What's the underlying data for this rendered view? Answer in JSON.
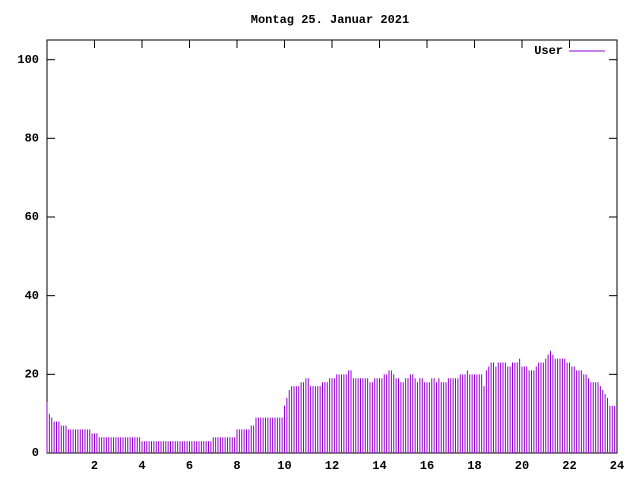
{
  "chart_data": {
    "type": "impulses",
    "title": "Montag 25. Januar 2021",
    "x": [
      0,
      0.1,
      0.2,
      0.3,
      0.4,
      0.5,
      0.6,
      0.7,
      0.8,
      0.9,
      1,
      1.1,
      1.2,
      1.3,
      1.4,
      1.5,
      1.6,
      1.7,
      1.8,
      1.9,
      2,
      2.1,
      2.2,
      2.3,
      2.4,
      2.5,
      2.6,
      2.7,
      2.8,
      2.9,
      3,
      3.1,
      3.2,
      3.3,
      3.4,
      3.5,
      3.6,
      3.7,
      3.8,
      3.9,
      4,
      4.1,
      4.2,
      4.3,
      4.4,
      4.5,
      4.6,
      4.7,
      4.8,
      4.9,
      5,
      5.1,
      5.2,
      5.3,
      5.4,
      5.5,
      5.6,
      5.7,
      5.8,
      5.9,
      6,
      6.1,
      6.2,
      6.3,
      6.4,
      6.5,
      6.6,
      6.7,
      6.8,
      6.9,
      7,
      7.1,
      7.2,
      7.3,
      7.4,
      7.5,
      7.6,
      7.7,
      7.8,
      7.9,
      8,
      8.1,
      8.2,
      8.3,
      8.4,
      8.5,
      8.6,
      8.7,
      8.8,
      8.9,
      9,
      9.1,
      9.2,
      9.3,
      9.4,
      9.5,
      9.6,
      9.7,
      9.8,
      9.9,
      10,
      10.1,
      10.2,
      10.3,
      10.4,
      10.5,
      10.6,
      10.7,
      10.8,
      10.9,
      11,
      11.1,
      11.2,
      11.3,
      11.4,
      11.5,
      11.6,
      11.7,
      11.8,
      11.9,
      12,
      12.1,
      12.2,
      12.3,
      12.4,
      12.5,
      12.6,
      12.7,
      12.8,
      12.9,
      13,
      13.1,
      13.2,
      13.3,
      13.4,
      13.5,
      13.6,
      13.7,
      13.8,
      13.9,
      14,
      14.1,
      14.2,
      14.3,
      14.4,
      14.5,
      14.6,
      14.7,
      14.8,
      14.9,
      15,
      15.1,
      15.2,
      15.3,
      15.4,
      15.5,
      15.6,
      15.7,
      15.8,
      15.9,
      16,
      16.1,
      16.2,
      16.3,
      16.4,
      16.5,
      16.6,
      16.7,
      16.8,
      16.9,
      17,
      17.1,
      17.2,
      17.3,
      17.4,
      17.5,
      17.6,
      17.7,
      17.8,
      17.9,
      18,
      18.1,
      18.2,
      18.3,
      18.4,
      18.5,
      18.6,
      18.7,
      18.8,
      18.9,
      19,
      19.1,
      19.2,
      19.3,
      19.4,
      19.5,
      19.6,
      19.7,
      19.8,
      19.9,
      20,
      20.1,
      20.2,
      20.3,
      20.4,
      20.5,
      20.6,
      20.7,
      20.8,
      20.9,
      21,
      21.1,
      21.2,
      21.3,
      21.4,
      21.5,
      21.6,
      21.7,
      21.8,
      21.9,
      22,
      22.1,
      22.2,
      22.3,
      22.4,
      22.5,
      22.6,
      22.7,
      22.8,
      22.9,
      23,
      23.1,
      23.2,
      23.3,
      23.4,
      23.5,
      23.6,
      23.7,
      23.8,
      23.9
    ],
    "series": [
      {
        "name": "User",
        "color": "#9400d3",
        "values": [
          13,
          10,
          9,
          8,
          8,
          8,
          7,
          7,
          7,
          6,
          6,
          6,
          6,
          6,
          6,
          6,
          6,
          6,
          6,
          5,
          5,
          5,
          4,
          4,
          4,
          4,
          4,
          4,
          4,
          4,
          4,
          4,
          4,
          4,
          4,
          4,
          4,
          4,
          4,
          4,
          3,
          3,
          3,
          3,
          3,
          3,
          3,
          3,
          3,
          3,
          3,
          3,
          3,
          3,
          3,
          3,
          3,
          3,
          3,
          3,
          3,
          3,
          3,
          3,
          3,
          3,
          3,
          3,
          3,
          3,
          4,
          4,
          4,
          4,
          4,
          4,
          4,
          4,
          4,
          4,
          6,
          6,
          6,
          6,
          6,
          6,
          7,
          7,
          9,
          9,
          9,
          9,
          9,
          9,
          9,
          9,
          9,
          9,
          9,
          9,
          12,
          14,
          16,
          17,
          17,
          17,
          17,
          18,
          18,
          19,
          19,
          17,
          17,
          17,
          17,
          17,
          18,
          18,
          18,
          19,
          19,
          19,
          20,
          20,
          20,
          20,
          20,
          21,
          21,
          19,
          19,
          19,
          19,
          19,
          19,
          19,
          18,
          18,
          19,
          19,
          19,
          19,
          20,
          20,
          21,
          21,
          20,
          19,
          19,
          18,
          18,
          19,
          19,
          20,
          20,
          19,
          18,
          19,
          19,
          18,
          18,
          18,
          19,
          19,
          18,
          19,
          18,
          18,
          18,
          19,
          19,
          19,
          19,
          19,
          20,
          20,
          20,
          21,
          20,
          20,
          20,
          20,
          20,
          20,
          17,
          21,
          22,
          23,
          23,
          22,
          23,
          23,
          23,
          23,
          22,
          22,
          23,
          23,
          23,
          24,
          22,
          22,
          22,
          21,
          21,
          21,
          22,
          23,
          23,
          23,
          24,
          25,
          26,
          25,
          24,
          24,
          24,
          24,
          24,
          23,
          23,
          22,
          22,
          21,
          21,
          21,
          20,
          20,
          19,
          18,
          18,
          18,
          18,
          17,
          16,
          15,
          14,
          12,
          12,
          12
        ]
      }
    ],
    "xlim": [
      0,
      24
    ],
    "xticks": [
      2,
      4,
      6,
      8,
      10,
      12,
      14,
      16,
      18,
      20,
      22,
      24
    ],
    "ylim": [
      0,
      105
    ],
    "yticks": [
      0,
      20,
      40,
      60,
      80,
      100
    ],
    "legend": "top right"
  }
}
